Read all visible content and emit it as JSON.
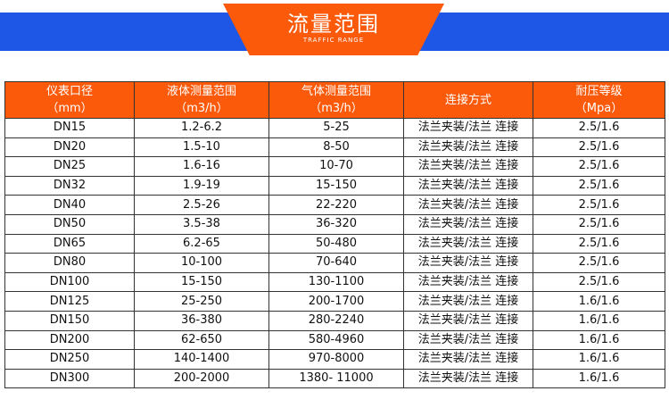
{
  "banner": {
    "title": "流量范围",
    "subtitle": "TRAFFIC RANGE"
  },
  "colors": {
    "accent": "#fa5a0a",
    "band": "#1e56e6"
  },
  "table": {
    "headers": [
      {
        "line1": "仪表口径",
        "line2": "（mm）"
      },
      {
        "line1": "液体测量范围",
        "line2": "（m3/h）"
      },
      {
        "line1": "气体测量范围",
        "line2": "（m3/h）"
      },
      {
        "line1": "连接方式",
        "line2": ""
      },
      {
        "line1": "耐压等级",
        "line2": "（Mpa）"
      }
    ],
    "rows": [
      [
        "DN15",
        "1.2-6.2",
        "5-25",
        "法兰夹装/法兰 连接",
        "2.5/1.6"
      ],
      [
        "DN20",
        "1.5-10",
        "8-50",
        "法兰夹装/法兰 连接",
        "2.5/1.6"
      ],
      [
        "DN25",
        "1.6-16",
        "10-70",
        "法兰夹装/法兰 连接",
        "2.5/1.6"
      ],
      [
        "DN32",
        "1.9-19",
        "15-150",
        "法兰夹装/法兰 连接",
        "2.5/1.6"
      ],
      [
        "DN40",
        "2.5-26",
        "22-220",
        "法兰夹装/法兰 连接",
        "2.5/1.6"
      ],
      [
        "DN50",
        "3.5-38",
        "36-320",
        "法兰夹装/法兰 连接",
        "2.5/1.6"
      ],
      [
        "DN65",
        "6.2-65",
        "50-480",
        "法兰夹装/法兰 连接",
        "2.5/1.6"
      ],
      [
        "DN80",
        "10-100",
        "70-640",
        "法兰夹装/法兰 连接",
        "2.5/1.6"
      ],
      [
        "DN100",
        "15-150",
        "130-1100",
        "法兰夹装/法兰 连接",
        "2.5/1.6"
      ],
      [
        "DN125",
        "25-250",
        "200-1700",
        "法兰夹装/法兰 连接",
        "1.6/1.6"
      ],
      [
        "DN150",
        "36-380",
        "280-2240",
        "法兰夹装/法兰 连接",
        "1.6/1.6"
      ],
      [
        "DN200",
        "62-650",
        "580-4960",
        "法兰夹装/法兰 连接",
        "1.6/1.6"
      ],
      [
        "DN250",
        "140-1400",
        "970-8000",
        "法兰夹装/法兰 连接",
        "1.6/1.6"
      ],
      [
        "DN300",
        "200-2000",
        "1380- 11000",
        "法兰夹装/法兰 连接",
        "1.6/1.6"
      ]
    ]
  }
}
